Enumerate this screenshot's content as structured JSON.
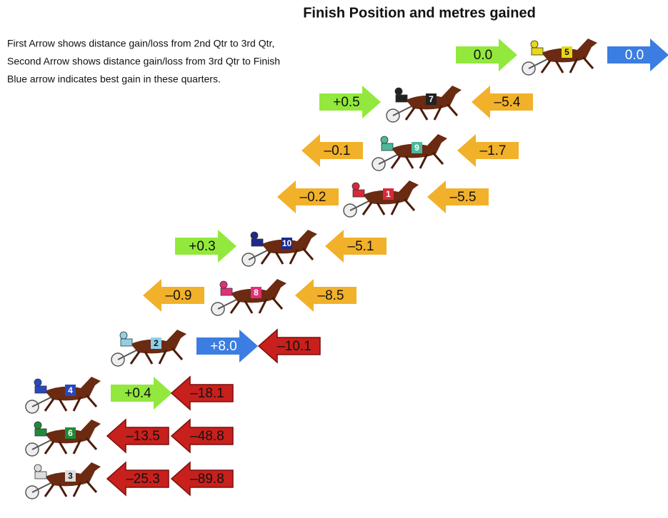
{
  "title": "Finish Position and metres gained",
  "notes": [
    "First Arrow shows distance gain/loss from 2nd Qtr to 3rd Qtr,",
    "Second Arrow shows distance gain/loss from 3rd Qtr to Finish",
    "Blue arrow indicates best gain in these quarters."
  ],
  "rows": [
    {
      "horse": "5",
      "silk": "#e6d81c",
      "first": {
        "label": "0.0",
        "color": "#92e83c",
        "direction": "right"
      },
      "second": {
        "label": "0.0",
        "color": "#3b7de0",
        "direction": "right"
      }
    },
    {
      "horse": "7",
      "silk": "#222222",
      "first": {
        "label": "+0.5",
        "color": "#92e83c",
        "direction": "right"
      },
      "second": {
        "label": "–5.4",
        "color": "#f2b12a",
        "direction": "left"
      }
    },
    {
      "horse": "9",
      "silk": "#4db89a",
      "first": {
        "label": "–0.1",
        "color": "#f2b12a",
        "direction": "left"
      },
      "second": {
        "label": "–1.7",
        "color": "#f2b12a",
        "direction": "left"
      }
    },
    {
      "horse": "1",
      "silk": "#d8283a",
      "first": {
        "label": "–0.2",
        "color": "#f2b12a",
        "direction": "left"
      },
      "second": {
        "label": "–5.5",
        "color": "#f2b12a",
        "direction": "left"
      }
    },
    {
      "horse": "10",
      "silk": "#1c2a8c",
      "first": {
        "label": "+0.3",
        "color": "#92e83c",
        "direction": "right"
      },
      "second": {
        "label": "–5.1",
        "color": "#f2b12a",
        "direction": "left"
      }
    },
    {
      "horse": "8",
      "silk": "#e0307a",
      "first": {
        "label": "–0.9",
        "color": "#f2b12a",
        "direction": "left"
      },
      "second": {
        "label": "–8.5",
        "color": "#f2b12a",
        "direction": "left"
      }
    },
    {
      "horse": "2",
      "silk": "#8fd0e8",
      "first": {
        "label": "+8.0",
        "color": "#3b7de0",
        "direction": "right"
      },
      "second": {
        "label": "–10.1",
        "color": "#c8201c",
        "direction": "left"
      }
    },
    {
      "horse": "4",
      "silk": "#2848c0",
      "first": {
        "label": "+0.4",
        "color": "#92e83c",
        "direction": "right"
      },
      "second": {
        "label": "–18.1",
        "color": "#c8201c",
        "direction": "left"
      }
    },
    {
      "horse": "6",
      "silk": "#1f8a3a",
      "first": {
        "label": "–13.5",
        "color": "#c8201c",
        "direction": "left"
      },
      "second": {
        "label": "–48.8",
        "color": "#c8201c",
        "direction": "left"
      }
    },
    {
      "horse": "3",
      "silk": "#dddddd",
      "first": {
        "label": "–25.3",
        "color": "#c8201c",
        "direction": "left"
      },
      "second": {
        "label": "–89.8",
        "color": "#c8201c",
        "direction": "left"
      }
    }
  ]
}
